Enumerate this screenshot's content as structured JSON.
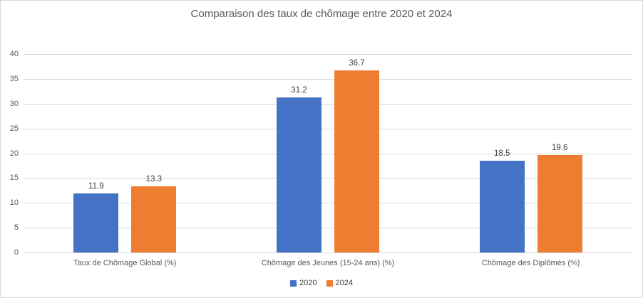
{
  "title": "Comparaison des taux de chômage entre 2020 et 2024",
  "chart_data": {
    "type": "bar",
    "title": "Comparaison des taux de chômage entre 2020 et 2024",
    "categories": [
      "Taux de Chômage Global (%)",
      "Chômage des Jeunes (15-24 ans) (%)",
      "Chômage des Diplômés (%)"
    ],
    "series": [
      {
        "name": "2020",
        "color": "#4472C4",
        "values": [
          11.9,
          31.2,
          18.5
        ]
      },
      {
        "name": "2024",
        "color": "#ED7D31",
        "values": [
          13.3,
          36.7,
          19.6
        ]
      }
    ],
    "data_labels": [
      "11.9",
      "13.3",
      "31.2",
      "36.7",
      "18.5",
      "19.6"
    ],
    "xlabel": "",
    "ylabel": "",
    "ylim": [
      0,
      40
    ],
    "yticks": [
      0,
      5,
      10,
      15,
      20,
      25,
      30,
      35,
      40
    ],
    "grid": "horizontal",
    "legend_position": "bottom"
  },
  "colors": {
    "background": "#FFFFFF",
    "frame_border": "#D9D9D9",
    "gridline": "#D9D9D9",
    "axis_text": "#595959",
    "title_text": "#595959",
    "data_label_text": "#404040",
    "series_2020": "#4472C4",
    "series_2024": "#ED7D31"
  }
}
